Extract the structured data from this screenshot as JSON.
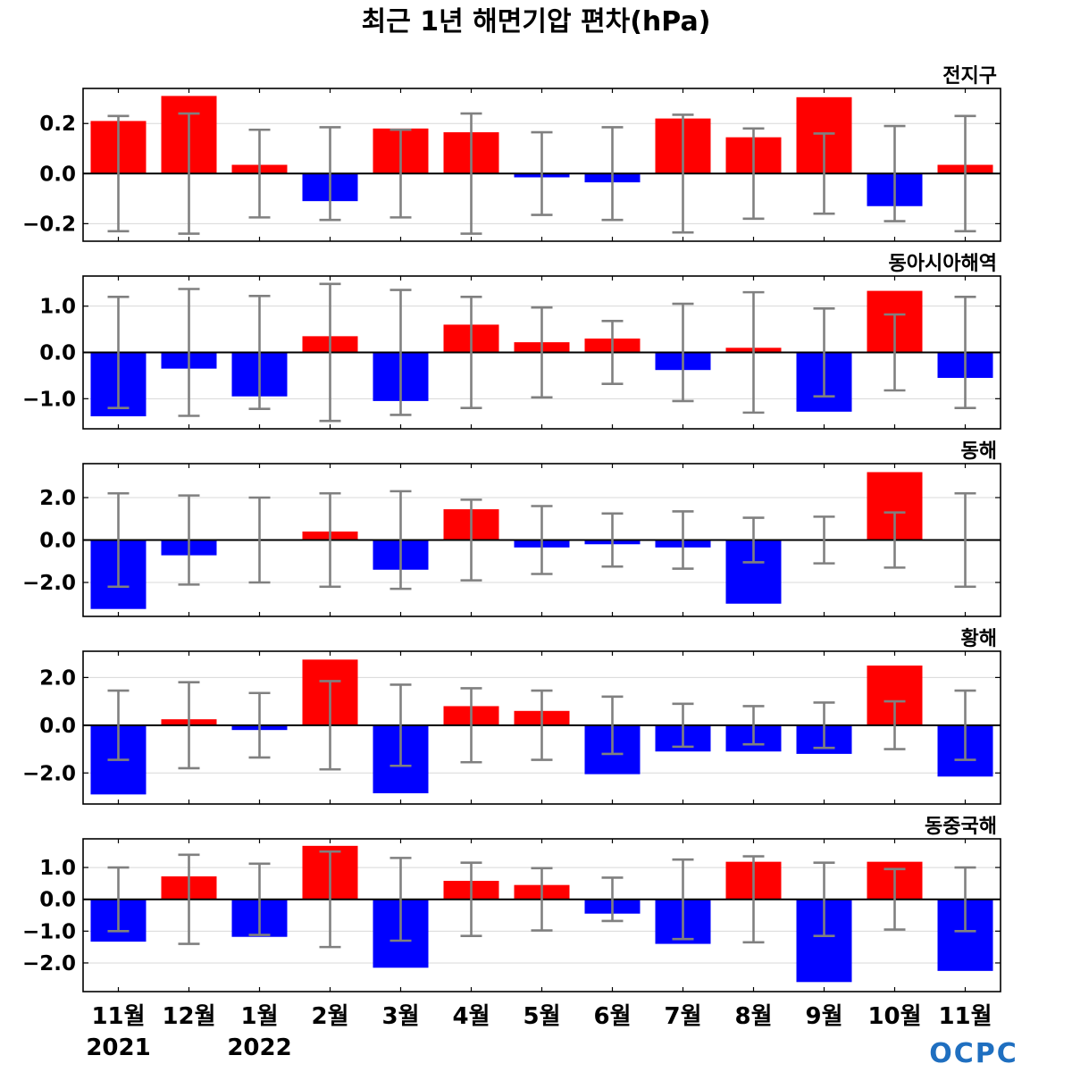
{
  "title": "최근 1년 해면기압 편차(hPa)",
  "logo": "OCPC",
  "colors": {
    "positive": "#ff0000",
    "negative": "#0000ff",
    "errorbar": "#808080"
  },
  "chart_data": {
    "type": "bar",
    "categories": [
      "11월",
      "12월",
      "1월",
      "2월",
      "3월",
      "4월",
      "5월",
      "6월",
      "7월",
      "8월",
      "9월",
      "10월",
      "11월"
    ],
    "year_labels": [
      {
        "index": 0,
        "label": "2021"
      },
      {
        "index": 2,
        "label": "2022"
      }
    ],
    "panels": [
      {
        "name": "전지구",
        "ylim": [
          -0.27,
          0.34
        ],
        "yticks": [
          {
            "value": 0.2,
            "label": "0.2"
          },
          {
            "value": 0.0,
            "label": "0.0"
          },
          {
            "value": -0.2,
            "label": "−0.2"
          }
        ],
        "values": [
          0.21,
          0.31,
          0.035,
          -0.11,
          0.18,
          0.165,
          -0.015,
          -0.035,
          0.22,
          0.145,
          0.305,
          -0.13,
          0.035
        ],
        "error": [
          0.23,
          0.24,
          0.175,
          0.185,
          0.175,
          0.24,
          0.165,
          0.185,
          0.235,
          0.18,
          0.16,
          0.19,
          0.23
        ]
      },
      {
        "name": "동아시아해역",
        "ylim": [
          -1.65,
          1.65
        ],
        "yticks": [
          {
            "value": 1.0,
            "label": "1.0"
          },
          {
            "value": 0.0,
            "label": "0.0"
          },
          {
            "value": -1.0,
            "label": "−1.0"
          }
        ],
        "values": [
          -1.38,
          -0.35,
          -0.95,
          0.35,
          -1.05,
          0.6,
          0.22,
          0.3,
          -0.38,
          0.1,
          -1.28,
          1.33,
          -0.55
        ],
        "error": [
          1.2,
          1.37,
          1.22,
          1.48,
          1.35,
          1.2,
          0.97,
          0.68,
          1.05,
          1.3,
          0.95,
          0.82,
          1.2
        ]
      },
      {
        "name": "동해",
        "ylim": [
          -3.6,
          3.6
        ],
        "yticks": [
          {
            "value": 2.0,
            "label": "2.0"
          },
          {
            "value": 0.0,
            "label": "0.0"
          },
          {
            "value": -2.0,
            "label": "−2.0"
          }
        ],
        "values": [
          -3.25,
          -0.72,
          -0.05,
          0.4,
          -1.4,
          1.45,
          -0.35,
          -0.2,
          -0.35,
          -3.0,
          -0.05,
          3.2,
          -0.05
        ],
        "error": [
          2.2,
          2.1,
          2.0,
          2.2,
          2.3,
          1.9,
          1.6,
          1.25,
          1.35,
          1.05,
          1.1,
          1.3,
          2.2
        ]
      },
      {
        "name": "황해",
        "ylim": [
          -3.3,
          3.1
        ],
        "yticks": [
          {
            "value": 2.0,
            "label": "2.0"
          },
          {
            "value": 0.0,
            "label": "0.0"
          },
          {
            "value": -2.0,
            "label": "−2.0"
          }
        ],
        "values": [
          -2.9,
          0.25,
          -0.2,
          2.75,
          -2.85,
          0.8,
          0.6,
          -2.05,
          -1.1,
          -1.1,
          -1.2,
          2.5,
          -2.15
        ],
        "error": [
          1.45,
          1.8,
          1.35,
          1.85,
          1.7,
          1.55,
          1.45,
          1.2,
          0.9,
          0.8,
          0.95,
          1.0,
          1.45
        ]
      },
      {
        "name": "동중국해",
        "ylim": [
          -2.9,
          1.9
        ],
        "yticks": [
          {
            "value": 1.0,
            "label": "1.0"
          },
          {
            "value": 0.0,
            "label": "0.0"
          },
          {
            "value": -1.0,
            "label": "−1.0"
          },
          {
            "value": -2.0,
            "label": "−2.0"
          }
        ],
        "values": [
          -1.33,
          0.72,
          -1.18,
          1.68,
          -2.15,
          0.58,
          0.45,
          -0.45,
          -1.4,
          1.18,
          -2.6,
          1.18,
          -2.25
        ],
        "error": [
          1.0,
          1.4,
          1.12,
          1.5,
          1.3,
          1.15,
          0.98,
          0.68,
          1.25,
          1.35,
          1.15,
          0.95,
          1.0
        ]
      }
    ]
  }
}
